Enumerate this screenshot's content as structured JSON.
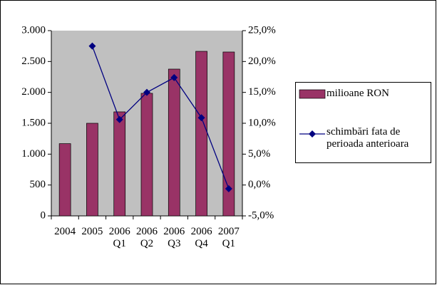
{
  "chart_data": {
    "type": "bar_line",
    "categories": [
      "2004",
      "2005",
      "2006 Q1",
      "2006 Q2",
      "2006 Q3",
      "2006 Q4",
      "2007 Q1"
    ],
    "series": [
      {
        "name": "milioane RON",
        "type": "bar",
        "color": "#993366",
        "values": [
          1170,
          1500,
          1685,
          1985,
          2377,
          2665,
          2654
        ]
      },
      {
        "name": "schimbări fata de perioada anterioara",
        "type": "line",
        "axis": "y2",
        "color": "#000080",
        "values": [
          null,
          22.5,
          10.6,
          15.0,
          17.4,
          10.9,
          -0.6
        ]
      }
    ],
    "ylim": [
      0,
      3000
    ],
    "yticks": [
      0,
      500,
      {
        "value": 1000,
        "label": "1.000"
      },
      {
        "value": 1500,
        "label": "1.500"
      },
      {
        "value": 2000,
        "label": "2.000"
      },
      {
        "value": 2500,
        "label": "2.500"
      },
      {
        "value": 3000,
        "label": "3.000"
      }
    ],
    "y2lim": [
      -5,
      25
    ],
    "y2ticks": [
      {
        "value": -5,
        "label": "-5,0%"
      },
      {
        "value": 0,
        "label": "0,0%"
      },
      {
        "value": 5,
        "label": "5,0%"
      },
      {
        "value": 10,
        "label": "10,0%"
      },
      {
        "value": 15,
        "label": "15,0%"
      },
      {
        "value": 20,
        "label": "20,0%"
      },
      {
        "value": 25,
        "label": "25,0%"
      }
    ],
    "legend": "right"
  }
}
